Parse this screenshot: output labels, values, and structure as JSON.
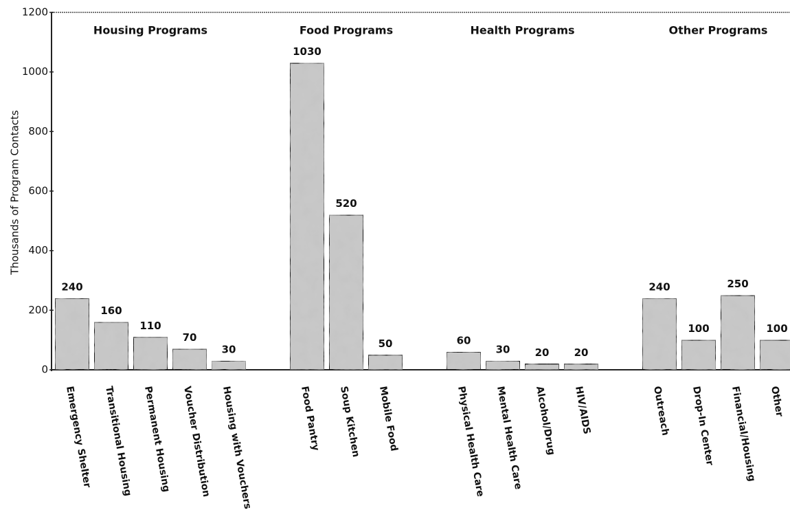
{
  "chart_data": {
    "type": "bar",
    "y_label": "Thousands of Program Contacts",
    "ylim": [
      0,
      1200
    ],
    "yticks": [
      0,
      200,
      400,
      600,
      800,
      1000,
      1200
    ],
    "color": "#c8c8c8",
    "groups": [
      {
        "name": "Housing Programs",
        "categories": [
          "Emergency Shelter",
          "Transitional Housing",
          "Permanent Housing",
          "Voucher Distribution",
          "Housing with Vouchers"
        ],
        "values": [
          240,
          160,
          110,
          70,
          30
        ]
      },
      {
        "name": "Food Programs",
        "categories": [
          "Food Pantry",
          "Soup Kitchen",
          "Mobile Food"
        ],
        "values": [
          1030,
          520,
          50
        ]
      },
      {
        "name": "Health Programs",
        "categories": [
          "Physical Health Care",
          "Mental Health Care",
          "Alcohol/Drug",
          "HIV/AIDS"
        ],
        "values": [
          60,
          30,
          20,
          20
        ]
      },
      {
        "name": "Other Programs",
        "categories": [
          "Outreach",
          "Drop-In Center",
          "Financial/Housing",
          "Other"
        ],
        "values": [
          240,
          100,
          250,
          100
        ]
      }
    ]
  }
}
